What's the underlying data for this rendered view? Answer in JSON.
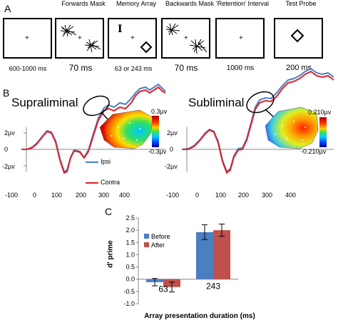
{
  "panel_a": {
    "letter": "A",
    "frames": [
      {
        "title": "",
        "duration": "600-1000 ms"
      },
      {
        "title": "Forwards Mask",
        "duration": "70 ms"
      },
      {
        "title": "Memory Array",
        "duration": "63 or 243 ms"
      },
      {
        "title": "Backwards Mask",
        "duration": "70 ms"
      },
      {
        "title": "'Retention' Interval",
        "duration": "1000 ms"
      },
      {
        "title": "Test Probe",
        "duration": "200 ms"
      }
    ],
    "fixation": "+",
    "array_letter": "I"
  },
  "panel_b": {
    "letter": "B",
    "left": {
      "title": "Supraliminal",
      "scale_top": "0.3µv",
      "scale_bottom": "-0.3µv"
    },
    "right": {
      "title": "Subliminal",
      "scale_top": "0.210µv",
      "scale_bottom": "-0.210µv"
    },
    "y_ticks": [
      "2µv",
      "0",
      "-2µv"
    ],
    "x_ticks": [
      "-100",
      "0",
      "100",
      "200",
      "300",
      "400"
    ],
    "legend": [
      {
        "label": "Ipsi",
        "color": "#4a7fc1"
      },
      {
        "label": "Contra",
        "color": "#e0202a"
      }
    ]
  },
  "chart_data": {
    "type": "bar",
    "panel_letter": "C",
    "categories": [
      "63",
      "243"
    ],
    "series": [
      {
        "name": "Before",
        "values": [
          -0.12,
          1.92
        ],
        "errors": [
          0.15,
          0.3
        ],
        "color": "#4a7fc1"
      },
      {
        "name": "After",
        "values": [
          -0.32,
          2.0
        ],
        "errors": [
          0.2,
          0.25
        ],
        "color": "#c0504d"
      }
    ],
    "xlabel": "Array presentation duration (ms)",
    "ylabel": "d' prime",
    "ylim": [
      -1.0,
      2.5
    ],
    "yticks": [
      "2.5",
      "2.0",
      "1.5",
      "1.0",
      "0.5",
      "0.0",
      "-0.5",
      "-1.0"
    ],
    "legend_position": "top-left",
    "grid": false
  }
}
